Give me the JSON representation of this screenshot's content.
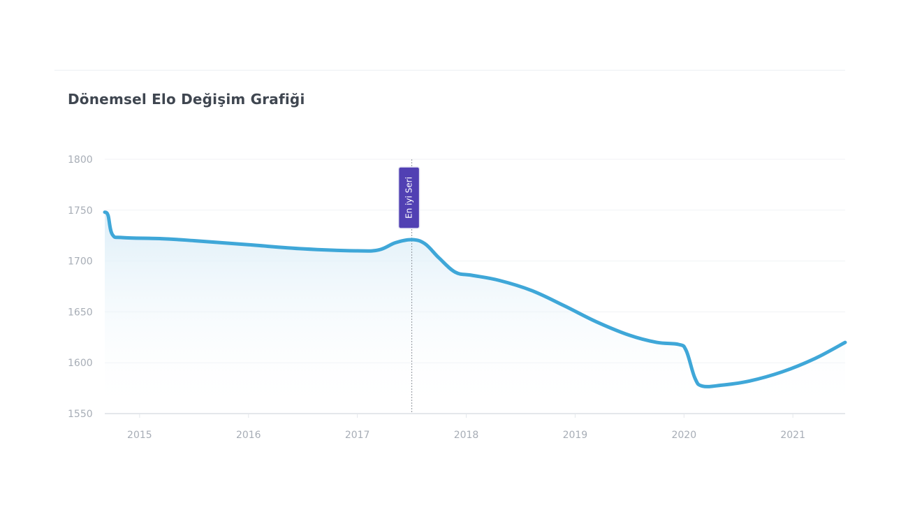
{
  "chart_title": "Dönemsel Elo Değişim Grafiği",
  "colors": {
    "line": "#3fa7d8",
    "area_top": "#d9ecf7",
    "grid": "#f0f2f5",
    "axis": "#e4e7eb",
    "tick_text": "#a7adb6",
    "annotation_bg": "#5140b3",
    "title": "#3f4650"
  },
  "chart_data": {
    "type": "area",
    "title": "Dönemsel Elo Değişim Grafiği",
    "xlabel": "",
    "ylabel": "",
    "xlim": [
      2014.68,
      2021.48
    ],
    "ylim": [
      1550,
      1800
    ],
    "y_ticks": [
      1550,
      1600,
      1650,
      1700,
      1750,
      1800
    ],
    "x_ticks": [
      2015,
      2016,
      2017,
      2018,
      2019,
      2020,
      2021
    ],
    "grid": true,
    "legend": "none",
    "series": [
      {
        "points": [
          [
            2014.68,
            1748
          ],
          [
            2014.71,
            1745
          ],
          [
            2014.75,
            1726
          ],
          [
            2014.85,
            1723
          ],
          [
            2015.2,
            1722
          ],
          [
            2015.5,
            1720
          ],
          [
            2016.0,
            1716
          ],
          [
            2016.5,
            1712
          ],
          [
            2017.0,
            1710
          ],
          [
            2017.2,
            1711
          ],
          [
            2017.35,
            1718
          ],
          [
            2017.5,
            1721
          ],
          [
            2017.62,
            1717
          ],
          [
            2017.75,
            1703
          ],
          [
            2017.9,
            1689
          ],
          [
            2018.05,
            1686
          ],
          [
            2018.3,
            1681
          ],
          [
            2018.6,
            1671
          ],
          [
            2018.9,
            1656
          ],
          [
            2019.2,
            1640
          ],
          [
            2019.5,
            1627
          ],
          [
            2019.75,
            1620
          ],
          [
            2019.95,
            1618
          ],
          [
            2020.02,
            1612
          ],
          [
            2020.1,
            1585
          ],
          [
            2020.17,
            1577
          ],
          [
            2020.35,
            1578
          ],
          [
            2020.6,
            1582
          ],
          [
            2020.9,
            1591
          ],
          [
            2021.2,
            1604
          ],
          [
            2021.48,
            1620
          ]
        ]
      }
    ],
    "annotations": [
      {
        "label": "En iyi Seri",
        "x": 2017.5
      }
    ]
  }
}
